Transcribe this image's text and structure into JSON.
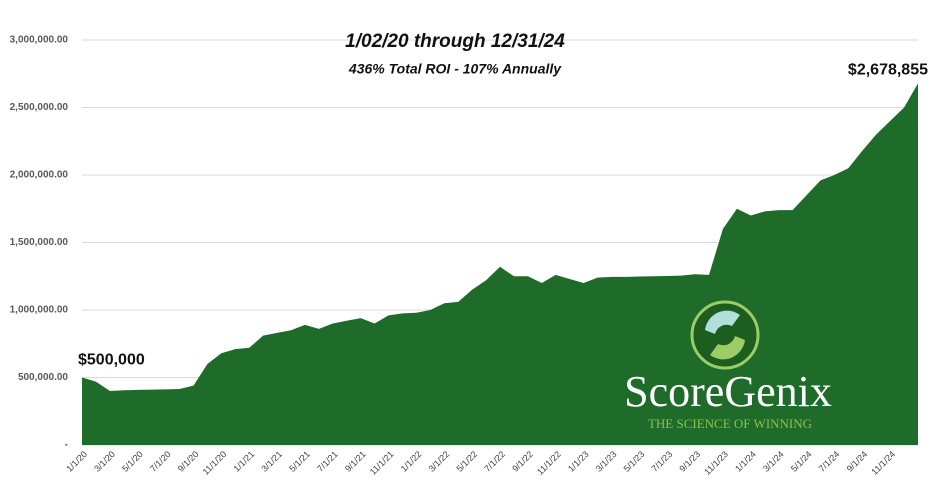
{
  "chart_data": {
    "type": "area",
    "title": "1/02/20 through 12/31/24",
    "subtitle": "436% Total ROI - 107% Annually",
    "categories": [
      "1/1/20",
      null,
      "3/1/20",
      null,
      "5/1/20",
      null,
      "7/1/20",
      null,
      "9/1/20",
      null,
      "11/1/20",
      null,
      "1/1/21",
      null,
      "3/1/21",
      null,
      "5/1/21",
      null,
      "7/1/21",
      null,
      "9/1/21",
      null,
      "11/1/21",
      null,
      "1/1/22",
      null,
      "3/1/22",
      null,
      "5/1/22",
      null,
      "7/1/22",
      null,
      "9/1/22",
      null,
      "11/1/22",
      null,
      "1/1/23",
      null,
      "3/1/23",
      null,
      "5/1/23",
      null,
      "7/1/23",
      null,
      "9/1/23",
      null,
      "11/1/23",
      null,
      "1/1/24",
      null,
      "3/1/24",
      null,
      "5/1/24",
      null,
      "7/1/24",
      null,
      "9/1/24",
      null,
      "11/1/24",
      null,
      null
    ],
    "values": [
      500000,
      470000,
      400000,
      405000,
      408000,
      410000,
      412000,
      415000,
      440000,
      600000,
      680000,
      710000,
      720000,
      810000,
      830000,
      850000,
      890000,
      860000,
      900000,
      920000,
      940000,
      900000,
      960000,
      975000,
      980000,
      1000000,
      1050000,
      1060000,
      1150000,
      1220000,
      1320000,
      1250000,
      1250000,
      1200000,
      1260000,
      1230000,
      1200000,
      1240000,
      1245000,
      1245000,
      1248000,
      1250000,
      1252000,
      1255000,
      1265000,
      1260000,
      1600000,
      1750000,
      1700000,
      1730000,
      1740000,
      1740000,
      1850000,
      1960000,
      2000000,
      2050000,
      2180000,
      2300000,
      2400000,
      2500000,
      2678855
    ],
    "value_labels": [
      "$500,000",
      null,
      null,
      null,
      null,
      null,
      null,
      null,
      null,
      null,
      null,
      null,
      null,
      null,
      null,
      null,
      null,
      null,
      null,
      null,
      null,
      null,
      null,
      null,
      null,
      null,
      null,
      null,
      null,
      null,
      null,
      null,
      null,
      null,
      null,
      null,
      null,
      null,
      null,
      null,
      null,
      null,
      null,
      null,
      null,
      null,
      null,
      null,
      null,
      null,
      null,
      null,
      null,
      null,
      null,
      null,
      null,
      null,
      null,
      null,
      "$2,678,855"
    ],
    "color": "#1e6b2a",
    "ylim": [
      0,
      3000000
    ],
    "yticks": [
      {
        "value": 0,
        "label": "-"
      },
      {
        "value": 500000,
        "label": "500,000.00"
      },
      {
        "value": 1000000,
        "label": "1,000,000.00"
      },
      {
        "value": 1500000,
        "label": "1,500,000.00"
      },
      {
        "value": 2000000,
        "label": "2,000,000.00"
      },
      {
        "value": 2500000,
        "label": "2,500,000.00"
      },
      {
        "value": 3000000,
        "label": "3,000,000.00"
      }
    ],
    "grid": true,
    "logo": {
      "name": "ScoreGenix",
      "tagline": "THE SCIENCE OF WINNING"
    }
  }
}
